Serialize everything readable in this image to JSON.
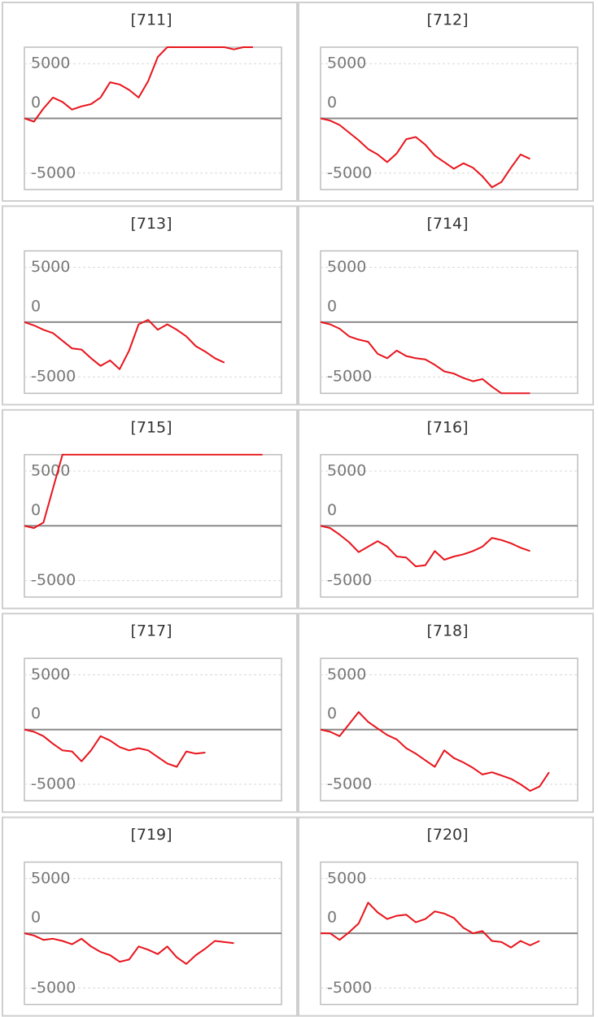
{
  "chart_data": [
    {
      "type": "line",
      "title": "[711]",
      "color": "#e8141c",
      "xlim": [
        0,
        27
      ],
      "ylim": [
        -6500,
        6500
      ],
      "yticks": [
        -5000,
        0,
        5000
      ],
      "grid": true,
      "values": [
        0,
        -300,
        900,
        1900,
        1500,
        800,
        1100,
        1300,
        1900,
        3300,
        3100,
        2600,
        1900,
        3400,
        5600,
        6500,
        6500,
        6500,
        6500,
        6500,
        6500,
        6500,
        6300,
        6500,
        6500
      ]
    },
    {
      "type": "line",
      "title": "[712]",
      "color": "#e8141c",
      "xlim": [
        0,
        27
      ],
      "ylim": [
        -6500,
        6500
      ],
      "yticks": [
        -5000,
        0,
        5000
      ],
      "grid": true,
      "values": [
        0,
        -200,
        -600,
        -1300,
        -2000,
        -2800,
        -3300,
        -4000,
        -3200,
        -1900,
        -1700,
        -2400,
        -3400,
        -4000,
        -4600,
        -4100,
        -4500,
        -5300,
        -6300,
        -5800,
        -4500,
        -3300,
        -3700
      ]
    },
    {
      "type": "line",
      "title": "[713]",
      "color": "#e8141c",
      "xlim": [
        0,
        27
      ],
      "ylim": [
        -6500,
        6500
      ],
      "yticks": [
        -5000,
        0,
        5000
      ],
      "grid": true,
      "values": [
        0,
        -300,
        -700,
        -1000,
        -1700,
        -2400,
        -2500,
        -3300,
        -4000,
        -3500,
        -4300,
        -2600,
        -200,
        200,
        -700,
        -200,
        -700,
        -1300,
        -2200,
        -2700,
        -3300,
        -3700
      ]
    },
    {
      "type": "line",
      "title": "[714]",
      "color": "#e8141c",
      "xlim": [
        0,
        27
      ],
      "ylim": [
        -6500,
        6500
      ],
      "yticks": [
        -5000,
        0,
        5000
      ],
      "grid": true,
      "values": [
        0,
        -200,
        -600,
        -1300,
        -1600,
        -1800,
        -2900,
        -3300,
        -2600,
        -3100,
        -3300,
        -3400,
        -3900,
        -4500,
        -4700,
        -5100,
        -5400,
        -5200,
        -5900,
        -6500,
        -6500,
        -6500,
        -6500
      ]
    },
    {
      "type": "line",
      "title": "[715]",
      "color": "#e8141c",
      "xlim": [
        0,
        27
      ],
      "ylim": [
        -6500,
        6500
      ],
      "yticks": [
        -5000,
        0,
        5000
      ],
      "grid": true,
      "values": [
        0,
        -200,
        300,
        3400,
        6500,
        6500,
        6500,
        6500,
        6500,
        6500,
        6500,
        6500,
        6500,
        6500,
        6500,
        6500,
        6500,
        6500,
        6500,
        6500,
        6500,
        6500,
        6500,
        6500,
        6500,
        6500
      ]
    },
    {
      "type": "line",
      "title": "[716]",
      "color": "#e8141c",
      "xlim": [
        0,
        27
      ],
      "ylim": [
        -6500,
        6500
      ],
      "yticks": [
        -5000,
        0,
        5000
      ],
      "grid": true,
      "values": [
        0,
        -200,
        -800,
        -1500,
        -2400,
        -1900,
        -1400,
        -1900,
        -2800,
        -2900,
        -3700,
        -3600,
        -2300,
        -3100,
        -2800,
        -2600,
        -2300,
        -1900,
        -1100,
        -1300,
        -1600,
        -2000,
        -2300
      ]
    },
    {
      "type": "line",
      "title": "[717]",
      "color": "#e8141c",
      "xlim": [
        0,
        27
      ],
      "ylim": [
        -6500,
        6500
      ],
      "yticks": [
        -5000,
        0,
        5000
      ],
      "grid": true,
      "values": [
        0,
        -200,
        -600,
        -1300,
        -1900,
        -2000,
        -2900,
        -1900,
        -600,
        -1000,
        -1600,
        -1900,
        -1700,
        -1900,
        -2500,
        -3100,
        -3400,
        -2000,
        -2200,
        -2100
      ]
    },
    {
      "type": "line",
      "title": "[718]",
      "color": "#e8141c",
      "xlim": [
        0,
        27
      ],
      "ylim": [
        -6500,
        6500
      ],
      "yticks": [
        -5000,
        0,
        5000
      ],
      "grid": true,
      "values": [
        0,
        -200,
        -600,
        500,
        1600,
        700,
        100,
        -500,
        -900,
        -1700,
        -2200,
        -2800,
        -3400,
        -1900,
        -2600,
        -3000,
        -3500,
        -4100,
        -3900,
        -4200,
        -4500,
        -5000,
        -5600,
        -5200,
        -3900
      ]
    },
    {
      "type": "line",
      "title": "[719]",
      "color": "#e8141c",
      "xlim": [
        0,
        27
      ],
      "ylim": [
        -6500,
        6500
      ],
      "yticks": [
        -5000,
        0,
        5000
      ],
      "grid": true,
      "values": [
        0,
        -200,
        -600,
        -500,
        -700,
        -1000,
        -500,
        -1200,
        -1700,
        -2000,
        -2600,
        -2400,
        -1200,
        -1500,
        -1900,
        -1200,
        -2200,
        -2800,
        -2000,
        -1400,
        -700,
        -800,
        -900
      ]
    },
    {
      "type": "line",
      "title": "[720]",
      "color": "#e8141c",
      "xlim": [
        0,
        27
      ],
      "ylim": [
        -6500,
        6500
      ],
      "yticks": [
        -5000,
        0,
        5000
      ],
      "grid": true,
      "values": [
        0,
        0,
        -600,
        100,
        900,
        2800,
        1900,
        1300,
        1600,
        1700,
        1000,
        1300,
        2000,
        1800,
        1400,
        500,
        0,
        200,
        -700,
        -800,
        -1300,
        -700,
        -1100,
        -700
      ]
    }
  ]
}
